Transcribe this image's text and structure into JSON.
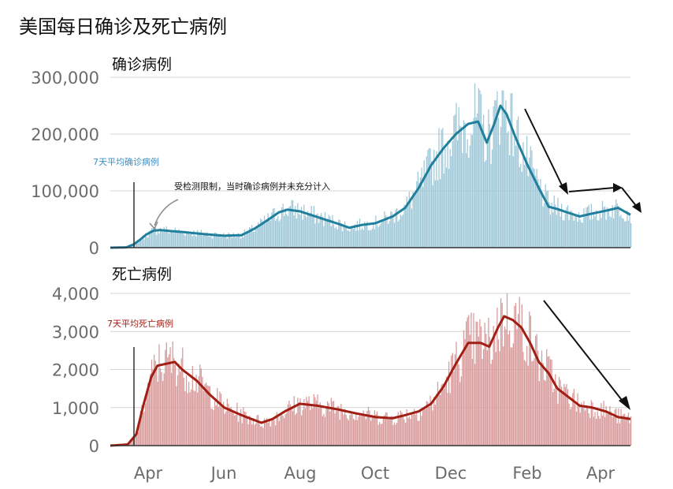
{
  "title": "美国每日确诊及死亡病例",
  "chart_data": [
    {
      "type": "bar",
      "title": "确诊病例",
      "legend": "7天平均确诊病例",
      "annotation": "受检测限制，当时确诊病例并未充分计入",
      "xticks": [
        "Apr",
        "Jun",
        "Aug",
        "Oct",
        "Dec",
        "Feb",
        "Apr"
      ],
      "yticks": [
        "0",
        "100,000",
        "200,000",
        "300,000"
      ],
      "ylim": [
        0,
        300000
      ],
      "colors": {
        "bars": "#9ec8d8",
        "line": "#1f7f9c"
      },
      "x_range": [
        "2020-03-01",
        "2021-04-25"
      ],
      "moving_average_7day": [
        [
          "2020-03-01",
          0
        ],
        [
          "2020-03-14",
          500
        ],
        [
          "2020-03-20",
          6000
        ],
        [
          "2020-03-25",
          14000
        ],
        [
          "2020-03-30",
          23000
        ],
        [
          "2020-04-05",
          30000
        ],
        [
          "2020-04-10",
          31000
        ],
        [
          "2020-04-20",
          29000
        ],
        [
          "2020-05-01",
          27000
        ],
        [
          "2020-05-15",
          24000
        ],
        [
          "2020-06-01",
          21000
        ],
        [
          "2020-06-15",
          22000
        ],
        [
          "2020-06-25",
          33000
        ],
        [
          "2020-07-05",
          47000
        ],
        [
          "2020-07-15",
          62000
        ],
        [
          "2020-07-22",
          67000
        ],
        [
          "2020-08-01",
          64000
        ],
        [
          "2020-08-15",
          54000
        ],
        [
          "2020-09-01",
          42000
        ],
        [
          "2020-09-10",
          35000
        ],
        [
          "2020-09-20",
          40000
        ],
        [
          "2020-10-01",
          43000
        ],
        [
          "2020-10-15",
          55000
        ],
        [
          "2020-10-25",
          70000
        ],
        [
          "2020-11-05",
          105000
        ],
        [
          "2020-11-15",
          145000
        ],
        [
          "2020-11-25",
          175000
        ],
        [
          "2020-12-05",
          200000
        ],
        [
          "2020-12-15",
          218000
        ],
        [
          "2020-12-23",
          222000
        ],
        [
          "2020-12-30",
          185000
        ],
        [
          "2021-01-05",
          218000
        ],
        [
          "2021-01-10",
          250000
        ],
        [
          "2021-01-15",
          235000
        ],
        [
          "2021-01-22",
          195000
        ],
        [
          "2021-02-01",
          145000
        ],
        [
          "2021-02-10",
          105000
        ],
        [
          "2021-02-18",
          72000
        ],
        [
          "2021-02-25",
          68000
        ],
        [
          "2021-03-05",
          62000
        ],
        [
          "2021-03-15",
          55000
        ],
        [
          "2021-03-25",
          60000
        ],
        [
          "2021-04-05",
          65000
        ],
        [
          "2021-04-15",
          70000
        ],
        [
          "2021-04-25",
          58000
        ]
      ]
    },
    {
      "type": "bar",
      "title": "死亡病例",
      "legend": "7天平均死亡病例",
      "xticks": [
        "Apr",
        "Jun",
        "Aug",
        "Oct",
        "Dec",
        "Feb",
        "Apr"
      ],
      "yticks": [
        "0",
        "1,000",
        "2,000",
        "3,000",
        "4,000"
      ],
      "ylim": [
        0,
        4000
      ],
      "colors": {
        "bars": "#d89a9a",
        "line": "#a01e14"
      },
      "x_range": [
        "2020-03-01",
        "2021-04-25"
      ],
      "moving_average_7day": [
        [
          "2020-03-01",
          0
        ],
        [
          "2020-03-15",
          30
        ],
        [
          "2020-03-22",
          300
        ],
        [
          "2020-03-28",
          1100
        ],
        [
          "2020-04-03",
          1800
        ],
        [
          "2020-04-08",
          2100
        ],
        [
          "2020-04-15",
          2150
        ],
        [
          "2020-04-22",
          2200
        ],
        [
          "2020-04-28",
          2000
        ],
        [
          "2020-05-10",
          1700
        ],
        [
          "2020-05-20",
          1350
        ],
        [
          "2020-06-01",
          1000
        ],
        [
          "2020-06-15",
          800
        ],
        [
          "2020-07-01",
          600
        ],
        [
          "2020-07-10",
          700
        ],
        [
          "2020-07-20",
          900
        ],
        [
          "2020-08-01",
          1100
        ],
        [
          "2020-08-15",
          1050
        ],
        [
          "2020-09-01",
          950
        ],
        [
          "2020-09-15",
          850
        ],
        [
          "2020-10-01",
          750
        ],
        [
          "2020-10-15",
          720
        ],
        [
          "2020-10-25",
          800
        ],
        [
          "2020-11-05",
          900
        ],
        [
          "2020-11-15",
          1100
        ],
        [
          "2020-11-25",
          1550
        ],
        [
          "2020-12-05",
          2150
        ],
        [
          "2020-12-15",
          2700
        ],
        [
          "2020-12-25",
          2700
        ],
        [
          "2021-01-01",
          2600
        ],
        [
          "2021-01-08",
          3100
        ],
        [
          "2021-01-13",
          3400
        ],
        [
          "2021-01-20",
          3300
        ],
        [
          "2021-01-27",
          3100
        ],
        [
          "2021-02-03",
          2700
        ],
        [
          "2021-02-10",
          2200
        ],
        [
          "2021-02-18",
          1900
        ],
        [
          "2021-02-25",
          1500
        ],
        [
          "2021-03-05",
          1300
        ],
        [
          "2021-03-15",
          1050
        ],
        [
          "2021-03-25",
          1000
        ],
        [
          "2021-04-05",
          900
        ],
        [
          "2021-04-15",
          750
        ],
        [
          "2021-04-25",
          700
        ]
      ]
    }
  ]
}
